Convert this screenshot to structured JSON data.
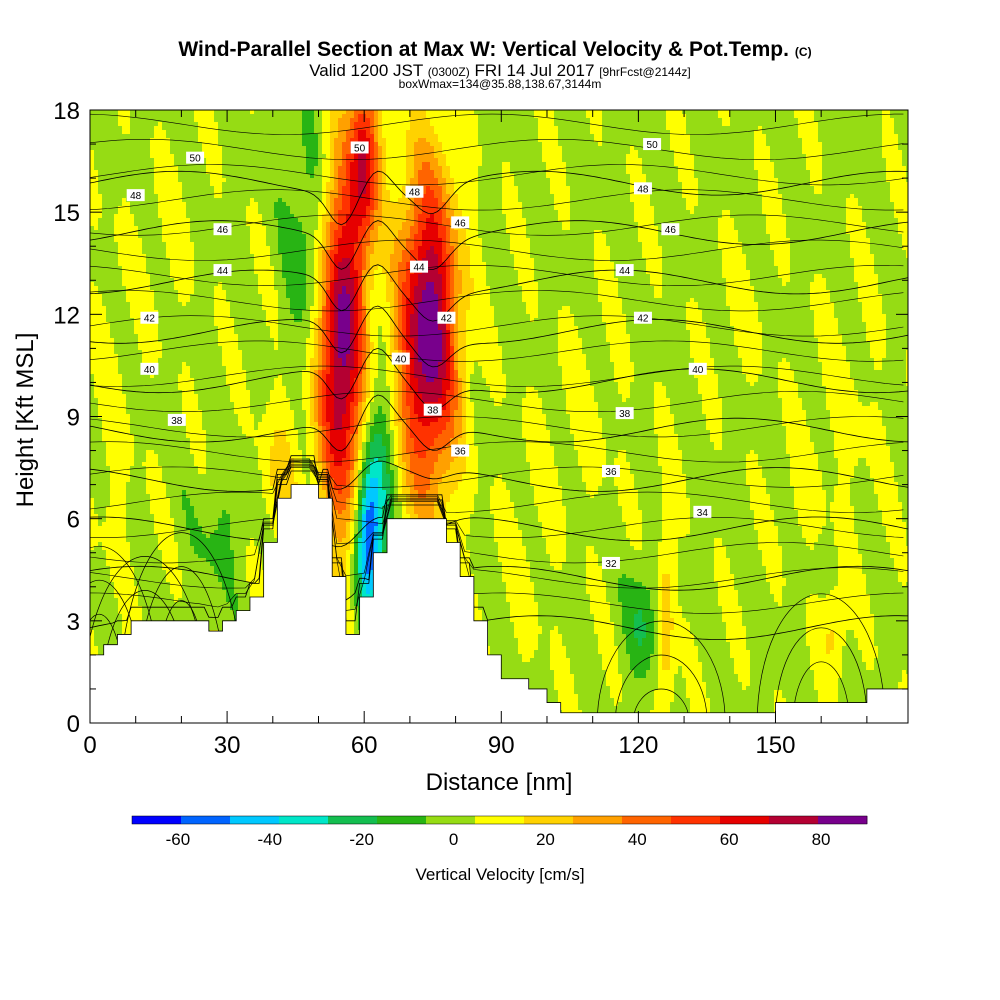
{
  "chart_data": {
    "type": "heatmap",
    "title": "Wind-Parallel Section at Max W: Vertical Velocity & Pot.Temp.",
    "title_mark": "(C)",
    "subtitle_parts": [
      "Valid 1200 JST ",
      "(0300Z)",
      " FRI 14 Jul 2017 ",
      "[9hrFcst@2144z]"
    ],
    "subtitle2": "boxWmax=134@35.88,138.67,3144m",
    "xlabel": "Distance [nm]",
    "ylabel": "Height [Kft MSL]",
    "xlim": [
      0,
      179
    ],
    "ylim": [
      0,
      18
    ],
    "x_ticks": [
      0,
      30,
      60,
      90,
      120,
      150
    ],
    "y_ticks": [
      0,
      3,
      6,
      9,
      12,
      15,
      18
    ],
    "colorbar": {
      "title": "Vertical Velocity [cm/s]",
      "bounds": [
        -70,
        90
      ],
      "colors": [
        "#0000ff",
        "#0064ff",
        "#00c8ff",
        "#00e6c8",
        "#14be50",
        "#28b414",
        "#96dc14",
        "#ffff00",
        "#ffd200",
        "#ffa000",
        "#ff6400",
        "#ff3200",
        "#e60000",
        "#b40032",
        "#78008c"
      ],
      "ticks": [
        -60,
        -40,
        -20,
        0,
        20,
        40,
        60,
        80
      ]
    },
    "terrain": [
      [
        0,
        2
      ],
      [
        3,
        2
      ],
      [
        3,
        2.3
      ],
      [
        6,
        2.3
      ],
      [
        6,
        2.6
      ],
      [
        9,
        2.6
      ],
      [
        9,
        3
      ],
      [
        26,
        3
      ],
      [
        26,
        2.7
      ],
      [
        29,
        2.7
      ],
      [
        29,
        3
      ],
      [
        32,
        3
      ],
      [
        32,
        3.3
      ],
      [
        35,
        3.3
      ],
      [
        35,
        3.7
      ],
      [
        38,
        3.7
      ],
      [
        38,
        5.3
      ],
      [
        41,
        5.3
      ],
      [
        41,
        6.6
      ],
      [
        44,
        6.6
      ],
      [
        44,
        7
      ],
      [
        50,
        7
      ],
      [
        50,
        6.6
      ],
      [
        53,
        6.6
      ],
      [
        53,
        4.3
      ],
      [
        56,
        4.3
      ],
      [
        56,
        2.6
      ],
      [
        59,
        2.6
      ],
      [
        59,
        3.7
      ],
      [
        62,
        3.7
      ],
      [
        62,
        5
      ],
      [
        65,
        5
      ],
      [
        65,
        6
      ],
      [
        78,
        6
      ],
      [
        78,
        5.3
      ],
      [
        81,
        5.3
      ],
      [
        81,
        4.3
      ],
      [
        84,
        4.3
      ],
      [
        84,
        3
      ],
      [
        87,
        3
      ],
      [
        87,
        2
      ],
      [
        90,
        2
      ],
      [
        90,
        1.3
      ],
      [
        96,
        1.3
      ],
      [
        96,
        1
      ],
      [
        100,
        1
      ],
      [
        100,
        0.6
      ],
      [
        103,
        0.6
      ],
      [
        103,
        0.3
      ],
      [
        150,
        0.3
      ],
      [
        150,
        0.6
      ],
      [
        170,
        0.6
      ],
      [
        170,
        1
      ],
      [
        179,
        1
      ]
    ],
    "velocity_features": [
      {
        "x": 55,
        "y": 11,
        "value": 85,
        "sx": 3.6,
        "sy": 3.6
      },
      {
        "x": 74,
        "y": 11.5,
        "value": 88,
        "sx": 4.6,
        "sy": 3.3
      },
      {
        "x": 60,
        "y": 16.5,
        "value": 60,
        "sx": 2.4,
        "sy": 1.8
      },
      {
        "x": 61,
        "y": 5.3,
        "value": -58,
        "sx": 2,
        "sy": 1.5
      },
      {
        "x": 63,
        "y": 7.5,
        "value": -28,
        "sx": 2.6,
        "sy": 2
      },
      {
        "x": 48,
        "y": 14,
        "value": -18,
        "sx": 3.5,
        "sy": 2.5
      },
      {
        "x": 42,
        "y": 7.2,
        "value": 18,
        "sx": 3,
        "sy": 1.6
      },
      {
        "x": 126,
        "y": 3,
        "value": 22,
        "sx": 1.4,
        "sy": 2.4
      },
      {
        "x": 121,
        "y": 3,
        "value": -20,
        "sx": 2.4,
        "sy": 1.2
      },
      {
        "x": 163,
        "y": 2.7,
        "value": 18,
        "sx": 2,
        "sy": 0.9
      },
      {
        "x": 28,
        "y": 5.5,
        "value": -10,
        "sx": 4,
        "sy": 1.5
      },
      {
        "x": 17,
        "y": 14,
        "value": 5,
        "sx": 4,
        "sy": 1.8
      },
      {
        "x": 143,
        "y": 12,
        "value": 5,
        "sx": 4,
        "sy": 1.5
      },
      {
        "x": 5,
        "y": 9,
        "value": 5,
        "sx": 4,
        "sy": 4
      },
      {
        "x": 155,
        "y": 6.5,
        "value": 5,
        "sx": 3,
        "sy": 1.2
      },
      {
        "x": 165,
        "y": 9,
        "value": 5,
        "sx": 6,
        "sy": 2.5
      },
      {
        "x": 96,
        "y": 5,
        "value": 5,
        "sx": 4,
        "sy": 2.5
      },
      {
        "x": 108,
        "y": 9,
        "value": 5,
        "sx": 6,
        "sy": 2
      }
    ],
    "theta_levels": [
      32,
      34,
      36,
      38,
      40,
      42,
      44,
      46,
      48,
      50
    ],
    "theta_labels": [
      {
        "text": "50",
        "x": 23,
        "y": 16.6
      },
      {
        "text": "48",
        "x": 10,
        "y": 15.5
      },
      {
        "text": "46",
        "x": 29,
        "y": 14.5
      },
      {
        "text": "44",
        "x": 29,
        "y": 13.3
      },
      {
        "text": "42",
        "x": 13,
        "y": 11.9
      },
      {
        "text": "40",
        "x": 13,
        "y": 10.4
      },
      {
        "text": "38",
        "x": 19,
        "y": 8.9
      },
      {
        "text": "50",
        "x": 59,
        "y": 16.9
      },
      {
        "text": "48",
        "x": 71,
        "y": 15.6
      },
      {
        "text": "46",
        "x": 81,
        "y": 14.7
      },
      {
        "text": "44",
        "x": 72,
        "y": 13.4
      },
      {
        "text": "42",
        "x": 78,
        "y": 11.9
      },
      {
        "text": "40",
        "x": 68,
        "y": 10.7
      },
      {
        "text": "38",
        "x": 75,
        "y": 9.2
      },
      {
        "text": "36",
        "x": 81,
        "y": 8
      },
      {
        "text": "50",
        "x": 123,
        "y": 17
      },
      {
        "text": "48",
        "x": 121,
        "y": 15.7
      },
      {
        "text": "46",
        "x": 127,
        "y": 14.5
      },
      {
        "text": "44",
        "x": 117,
        "y": 13.3
      },
      {
        "text": "42",
        "x": 121,
        "y": 11.9
      },
      {
        "text": "40",
        "x": 133,
        "y": 10.4
      },
      {
        "text": "38",
        "x": 117,
        "y": 9.1
      },
      {
        "text": "36",
        "x": 114,
        "y": 7.4
      },
      {
        "text": "34",
        "x": 134,
        "y": 6.2
      },
      {
        "text": "32",
        "x": 114,
        "y": 4.7
      }
    ]
  }
}
